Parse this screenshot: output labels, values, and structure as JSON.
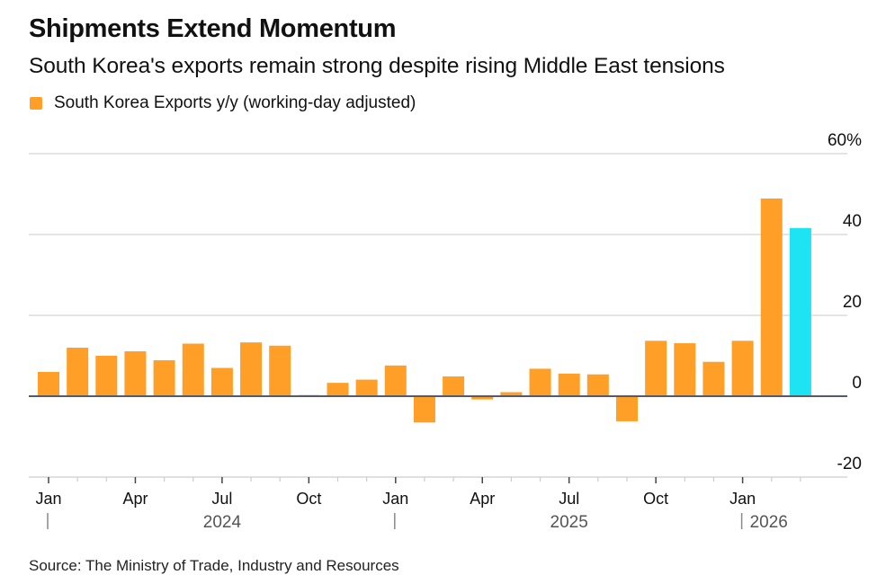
{
  "title": "Shipments Extend Momentum",
  "subtitle": "South Korea's exports remain strong despite rising Middle East tensions",
  "source": "Source: The Ministry of Trade, Industry and Resources",
  "colors": {
    "primary": "#FF9F27",
    "highlight": "#1EE3F2",
    "grid": "#DCDCDC",
    "zero_line": "#555B66"
  },
  "chart_data": {
    "type": "bar",
    "title": "Shipments Extend Momentum",
    "subtitle": "South Korea's exports remain strong despite rising Middle East tensions",
    "xlabel": "",
    "ylabel": "",
    "legend": [
      {
        "label": "South Korea Exports y/y (working-day adjusted)",
        "color": "#FF9F27"
      }
    ],
    "legend_position": "top-left",
    "ylim": [
      -20,
      60
    ],
    "yticks": [
      60,
      40,
      20,
      0,
      -20
    ],
    "ytick_labels": [
      "60%",
      "40",
      "20",
      "0",
      "-20"
    ],
    "grid": true,
    "y_axis_side": "right",
    "categories": [
      "Jan 2024",
      "Feb 2024",
      "Mar 2024",
      "Apr 2024",
      "May 2024",
      "Jun 2024",
      "Jul 2024",
      "Aug 2024",
      "Sep 2024",
      "Oct 2024",
      "Nov 2024",
      "Dec 2024",
      "Jan 2025",
      "Feb 2025",
      "Mar 2025",
      "Apr 2025",
      "May 2025",
      "Jun 2025",
      "Jul 2025",
      "Aug 2025",
      "Sep 2025",
      "Oct 2025",
      "Nov 2025",
      "Dec 2025",
      "Jan 2026",
      "Feb 2026",
      "Mar 2026"
    ],
    "series": [
      {
        "name": "South Korea Exports y/y (working-day adjusted)",
        "values": [
          6.0,
          12.0,
          10.0,
          11.1,
          8.9,
          13.0,
          7.0,
          13.3,
          12.5,
          0.3,
          3.3,
          4.1,
          7.6,
          -6.5,
          4.9,
          -0.8,
          1.0,
          6.8,
          5.6,
          5.4,
          -6.2,
          13.7,
          13.1,
          8.5,
          13.7,
          48.9,
          41.6
        ],
        "highlight_index": 26
      }
    ],
    "xtick_labels": [
      {
        "label": "Jan",
        "index": 0
      },
      {
        "label": "Apr",
        "index": 3
      },
      {
        "label": "Jul",
        "index": 6
      },
      {
        "label": "Oct",
        "index": 9
      },
      {
        "label": "Jan",
        "index": 12
      },
      {
        "label": "Apr",
        "index": 15
      },
      {
        "label": "Jul",
        "index": 18
      },
      {
        "label": "Oct",
        "index": 21
      },
      {
        "label": "Jan",
        "index": 24
      }
    ],
    "year_labels": [
      {
        "label": "2024",
        "start_index": 0,
        "center_index": 6
      },
      {
        "label": "2025",
        "start_index": 12,
        "center_index": 18
      },
      {
        "label": "2026",
        "start_index": 24,
        "center_index": 25
      }
    ]
  }
}
